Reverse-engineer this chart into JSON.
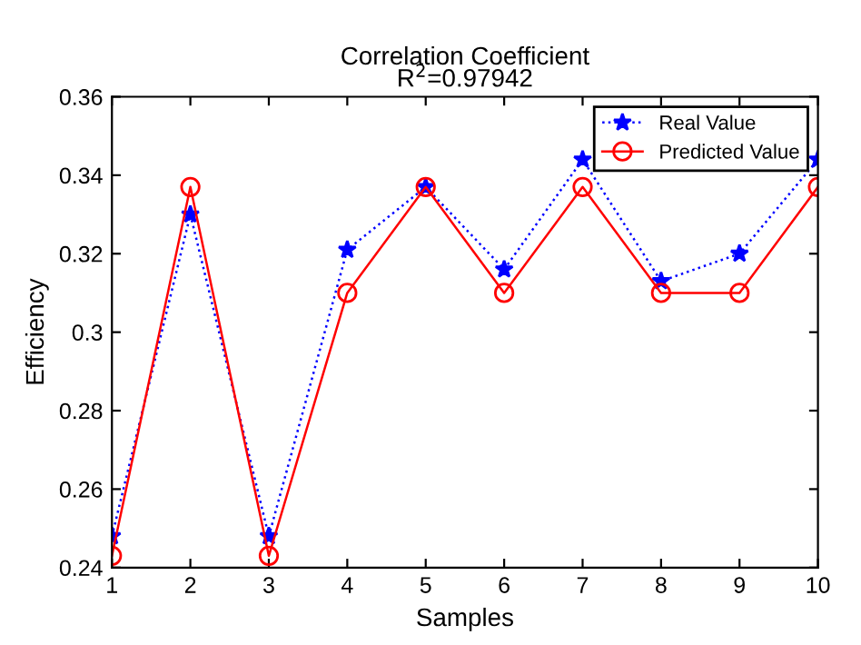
{
  "chart_data": {
    "type": "line",
    "title": "Correlation Coefficient",
    "subtitle": "R$^{2}$=0.97942",
    "xlabel": "Samples",
    "ylabel": "Efficiency",
    "x": [
      1,
      2,
      3,
      4,
      5,
      6,
      7,
      8,
      9,
      10
    ],
    "series": [
      {
        "name": "Real Value",
        "color": "#0000ff",
        "marker": "star",
        "line_style": "dotted",
        "values": [
          0.248,
          0.33,
          0.248,
          0.321,
          0.337,
          0.316,
          0.344,
          0.313,
          0.32,
          0.344
        ]
      },
      {
        "name": "Predicted Value",
        "color": "#ff0000",
        "marker": "circle",
        "line_style": "solid",
        "values": [
          0.243,
          0.337,
          0.243,
          0.31,
          0.337,
          0.31,
          0.337,
          0.31,
          0.31,
          0.337
        ]
      }
    ],
    "xlim": [
      1,
      10
    ],
    "xticks": [
      1,
      2,
      3,
      4,
      5,
      6,
      7,
      8,
      9,
      10
    ],
    "ylim": [
      0.24,
      0.36
    ],
    "yticks": [
      0.24,
      0.26,
      0.28,
      0.3,
      0.32,
      0.34,
      0.36
    ],
    "grid": false,
    "legend": "top right"
  }
}
